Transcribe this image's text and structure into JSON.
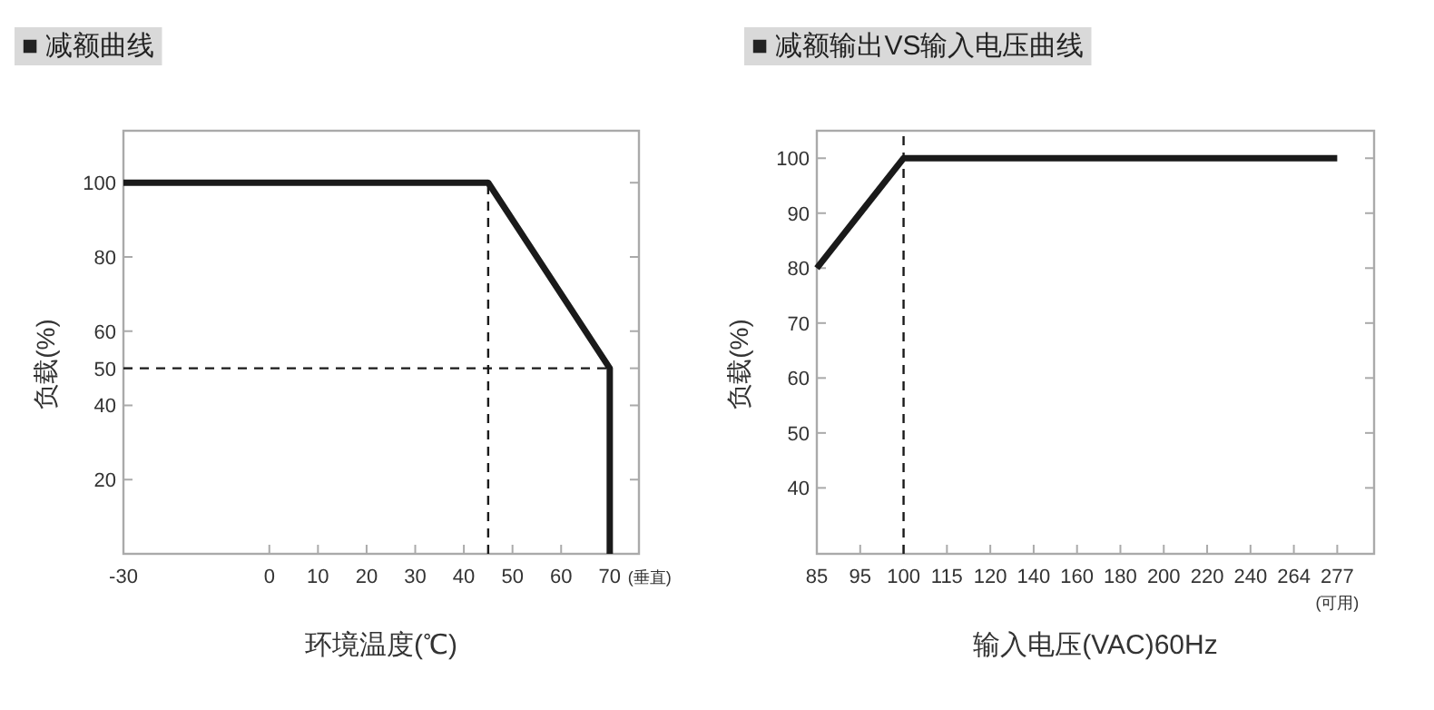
{
  "chart_data": [
    {
      "type": "line",
      "title": "■ 减额曲线",
      "xlabel": "环境温度(℃)",
      "ylabel": "负载(%)",
      "annotations": [
        "(垂直)"
      ],
      "xlim": [
        -30,
        76
      ],
      "xticks": [
        -30,
        0,
        10,
        20,
        30,
        40,
        50,
        60,
        70
      ],
      "ylim": [
        0,
        114
      ],
      "yticks": [
        20,
        40,
        50,
        60,
        80,
        100
      ],
      "series": [
        {
          "color": "#1a1a1a",
          "line_style": "solid",
          "x": [
            -30,
            45,
            70,
            70
          ],
          "values": [
            100,
            100,
            50,
            0
          ]
        },
        {
          "color": "#1a1a1a",
          "line_style": "dashed",
          "x": [
            45,
            45
          ],
          "values": [
            0,
            100
          ]
        },
        {
          "color": "#1a1a1a",
          "line_style": "dashed",
          "x": [
            -30,
            70
          ],
          "values": [
            50,
            50
          ]
        }
      ]
    },
    {
      "type": "line",
      "title": "■ 减额输出VS输入电压曲线",
      "xlabel": "输入电压(VAC)60Hz",
      "ylabel": "负载(%)",
      "annotations": [
        "(可用)"
      ],
      "categories": [
        "85",
        "95",
        "100",
        "115",
        "120",
        "140",
        "160",
        "180",
        "200",
        "220",
        "240",
        "264",
        "277"
      ],
      "ylim": [
        28,
        105
      ],
      "yticks": [
        40,
        50,
        60,
        70,
        80,
        90,
        100
      ],
      "series": [
        {
          "color": "#1a1a1a",
          "line_style": "solid",
          "values": [
            80,
            90,
            100,
            100,
            100,
            100,
            100,
            100,
            100,
            100,
            100,
            100,
            100
          ]
        }
      ],
      "ref_lines": [
        {
          "axis": "x",
          "value": "100",
          "color": "#1a1a1a",
          "line_style": "dashed"
        }
      ]
    }
  ]
}
